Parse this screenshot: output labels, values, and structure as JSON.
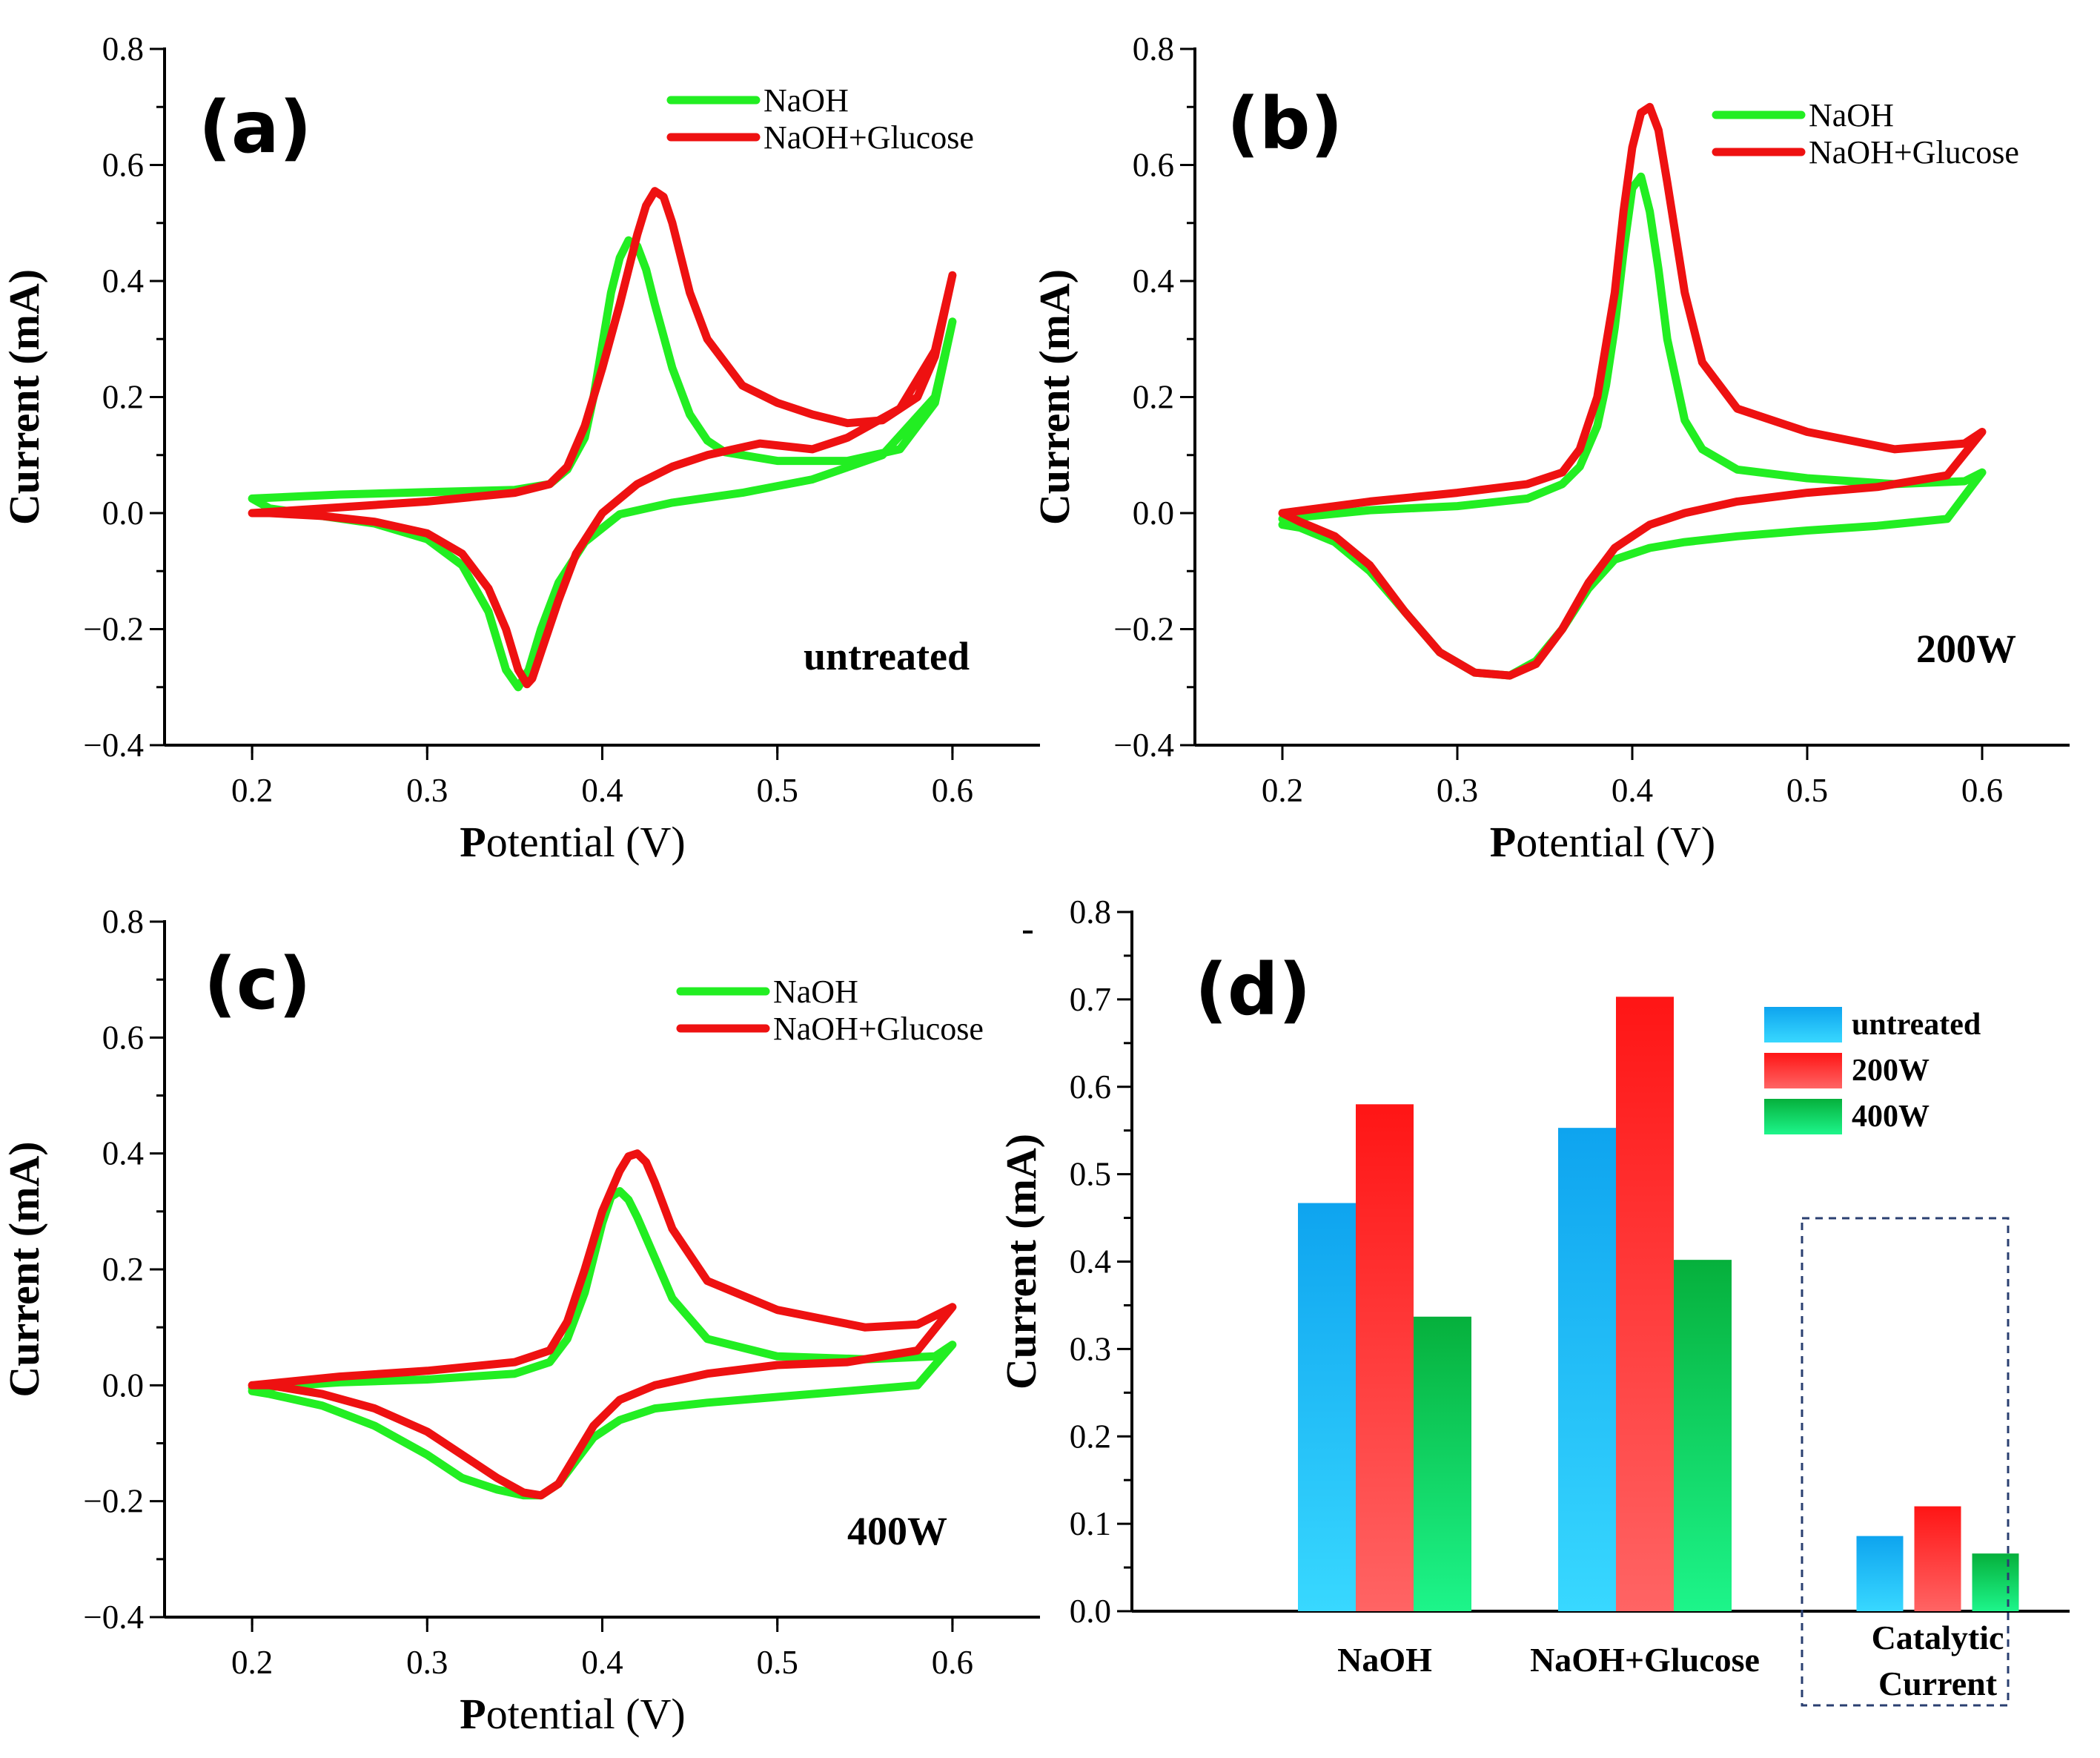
{
  "chart_data": [
    {
      "type": "line",
      "panel": "(a)",
      "annotation": "untreated",
      "xlabel": "Potential (V)",
      "ylabel": "Current (mA)",
      "xlim": [
        0.15,
        0.65
      ],
      "ylim": [
        -0.4,
        0.8
      ],
      "xticks": [
        0.2,
        0.3,
        0.4,
        0.5,
        0.6
      ],
      "xtick_labels": [
        "0.2",
        "0.3",
        "0.4",
        "0.5",
        "0.6"
      ],
      "yticks": [
        -0.4,
        -0.2,
        0.0,
        0.2,
        0.4,
        0.6,
        0.8
      ],
      "ytick_labels": [
        "−0.4",
        "−0.2",
        "0.0",
        "0.2",
        "0.4",
        "0.6",
        "0.8"
      ],
      "legend_position": "top-right",
      "series": [
        {
          "name": "NaOH",
          "color": "#22ee22",
          "x": [
            0.2,
            0.25,
            0.3,
            0.35,
            0.37,
            0.38,
            0.39,
            0.395,
            0.4,
            0.405,
            0.41,
            0.415,
            0.42,
            0.425,
            0.43,
            0.44,
            0.45,
            0.46,
            0.47,
            0.5,
            0.54,
            0.57,
            0.59,
            0.6,
            0.6,
            0.59,
            0.56,
            0.52,
            0.48,
            0.44,
            0.41,
            0.39,
            0.375,
            0.365,
            0.358,
            0.352,
            0.345,
            0.335,
            0.32,
            0.3,
            0.27,
            0.24,
            0.21,
            0.2
          ],
          "y": [
            0.025,
            0.032,
            0.036,
            0.04,
            0.05,
            0.075,
            0.13,
            0.2,
            0.29,
            0.38,
            0.44,
            0.47,
            0.46,
            0.42,
            0.36,
            0.25,
            0.17,
            0.125,
            0.105,
            0.09,
            0.09,
            0.11,
            0.19,
            0.33,
            0.33,
            0.2,
            0.1,
            0.058,
            0.035,
            0.018,
            -0.002,
            -0.05,
            -0.12,
            -0.2,
            -0.27,
            -0.3,
            -0.27,
            -0.17,
            -0.09,
            -0.045,
            -0.018,
            -0.005,
            0.008,
            0.025
          ]
        },
        {
          "name": "NaOH+Glucose",
          "color": "#ee1111",
          "x": [
            0.2,
            0.25,
            0.3,
            0.35,
            0.37,
            0.38,
            0.39,
            0.4,
            0.41,
            0.42,
            0.425,
            0.43,
            0.435,
            0.44,
            0.45,
            0.46,
            0.48,
            0.5,
            0.52,
            0.54,
            0.56,
            0.58,
            0.59,
            0.6,
            0.6,
            0.59,
            0.57,
            0.54,
            0.52,
            0.49,
            0.46,
            0.44,
            0.42,
            0.4,
            0.385,
            0.375,
            0.365,
            0.36,
            0.357,
            0.352,
            0.345,
            0.335,
            0.32,
            0.3,
            0.27,
            0.24,
            0.21,
            0.2
          ],
          "y": [
            0.0,
            0.01,
            0.02,
            0.035,
            0.05,
            0.08,
            0.15,
            0.25,
            0.36,
            0.48,
            0.53,
            0.555,
            0.545,
            0.5,
            0.38,
            0.3,
            0.22,
            0.19,
            0.17,
            0.155,
            0.16,
            0.2,
            0.27,
            0.41,
            0.41,
            0.28,
            0.18,
            0.13,
            0.11,
            0.12,
            0.1,
            0.08,
            0.05,
            0.0,
            -0.07,
            -0.15,
            -0.24,
            -0.285,
            -0.295,
            -0.27,
            -0.2,
            -0.13,
            -0.07,
            -0.035,
            -0.015,
            -0.005,
            0.0,
            0.0
          ]
        }
      ]
    },
    {
      "type": "line",
      "panel": "(b)",
      "annotation": "200W",
      "xlabel": "Potential (V)",
      "ylabel": "Current (mA)",
      "xlim": [
        0.15,
        0.65
      ],
      "ylim": [
        -0.4,
        0.8
      ],
      "xticks": [
        0.2,
        0.3,
        0.4,
        0.5,
        0.6
      ],
      "xtick_labels": [
        "0.2",
        "0.3",
        "0.4",
        "0.5",
        "0.6"
      ],
      "yticks": [
        -0.4,
        -0.2,
        0.0,
        0.2,
        0.4,
        0.6,
        0.8
      ],
      "ytick_labels": [
        "−0.4",
        "−0.2",
        "0.0",
        "0.2",
        "0.4",
        "0.6",
        "0.8"
      ],
      "legend_position": "top-right",
      "series": [
        {
          "name": "NaOH",
          "color": "#22ee22",
          "x": [
            0.2,
            0.25,
            0.3,
            0.34,
            0.36,
            0.37,
            0.38,
            0.385,
            0.39,
            0.395,
            0.4,
            0.405,
            0.41,
            0.415,
            0.42,
            0.43,
            0.44,
            0.46,
            0.5,
            0.55,
            0.59,
            0.6,
            0.6,
            0.58,
            0.54,
            0.5,
            0.46,
            0.43,
            0.41,
            0.39,
            0.375,
            0.36,
            0.345,
            0.33,
            0.31,
            0.29,
            0.27,
            0.25,
            0.23,
            0.21,
            0.2
          ],
          "y": [
            -0.01,
            0.005,
            0.012,
            0.025,
            0.05,
            0.08,
            0.15,
            0.22,
            0.32,
            0.45,
            0.56,
            0.58,
            0.52,
            0.42,
            0.3,
            0.16,
            0.11,
            0.075,
            0.06,
            0.05,
            0.055,
            0.07,
            0.07,
            -0.01,
            -0.022,
            -0.03,
            -0.04,
            -0.05,
            -0.06,
            -0.08,
            -0.13,
            -0.2,
            -0.255,
            -0.28,
            -0.275,
            -0.24,
            -0.17,
            -0.1,
            -0.05,
            -0.025,
            -0.02
          ]
        },
        {
          "name": "NaOH+Glucose",
          "color": "#ee1111",
          "x": [
            0.2,
            0.25,
            0.3,
            0.34,
            0.36,
            0.37,
            0.38,
            0.39,
            0.395,
            0.4,
            0.405,
            0.41,
            0.415,
            0.42,
            0.43,
            0.44,
            0.46,
            0.5,
            0.55,
            0.59,
            0.6,
            0.6,
            0.58,
            0.54,
            0.5,
            0.46,
            0.43,
            0.41,
            0.39,
            0.375,
            0.36,
            0.345,
            0.33,
            0.31,
            0.29,
            0.27,
            0.25,
            0.23,
            0.21,
            0.2
          ],
          "y": [
            0.0,
            0.02,
            0.035,
            0.05,
            0.07,
            0.11,
            0.2,
            0.38,
            0.52,
            0.63,
            0.69,
            0.7,
            0.66,
            0.57,
            0.38,
            0.26,
            0.18,
            0.14,
            0.11,
            0.12,
            0.14,
            0.14,
            0.065,
            0.045,
            0.035,
            0.02,
            0.0,
            -0.02,
            -0.06,
            -0.12,
            -0.2,
            -0.26,
            -0.28,
            -0.275,
            -0.24,
            -0.17,
            -0.09,
            -0.04,
            -0.015,
            0.0
          ]
        }
      ]
    },
    {
      "type": "line",
      "panel": "(c)",
      "annotation": "400W",
      "xlabel": "Potential (V)",
      "ylabel": "Current (mA)",
      "xlim": [
        0.15,
        0.65
      ],
      "ylim": [
        -0.4,
        0.8
      ],
      "xticks": [
        0.2,
        0.3,
        0.4,
        0.5,
        0.6
      ],
      "xtick_labels": [
        "0.2",
        "0.3",
        "0.4",
        "0.5",
        "0.6"
      ],
      "yticks": [
        -0.4,
        -0.2,
        0.0,
        0.2,
        0.4,
        0.6,
        0.8
      ],
      "ytick_labels": [
        "−0.4",
        "−0.2",
        "0.0",
        "0.2",
        "0.4",
        "0.6",
        "0.8"
      ],
      "legend_position": "top-right",
      "series": [
        {
          "name": "NaOH",
          "color": "#22ee22",
          "x": [
            0.2,
            0.25,
            0.3,
            0.35,
            0.37,
            0.38,
            0.39,
            0.4,
            0.405,
            0.41,
            0.415,
            0.42,
            0.43,
            0.44,
            0.46,
            0.5,
            0.55,
            0.59,
            0.6,
            0.6,
            0.58,
            0.54,
            0.5,
            0.46,
            0.43,
            0.41,
            0.395,
            0.385,
            0.375,
            0.365,
            0.355,
            0.34,
            0.32,
            0.3,
            0.27,
            0.24,
            0.21,
            0.2
          ],
          "y": [
            -0.005,
            0.005,
            0.01,
            0.02,
            0.04,
            0.08,
            0.16,
            0.28,
            0.325,
            0.335,
            0.32,
            0.29,
            0.22,
            0.15,
            0.08,
            0.05,
            0.045,
            0.05,
            0.07,
            0.07,
            0.0,
            -0.01,
            -0.02,
            -0.03,
            -0.04,
            -0.06,
            -0.09,
            -0.13,
            -0.17,
            -0.19,
            -0.19,
            -0.18,
            -0.16,
            -0.12,
            -0.07,
            -0.035,
            -0.015,
            -0.01
          ]
        },
        {
          "name": "NaOH+Glucose",
          "color": "#ee1111",
          "x": [
            0.2,
            0.25,
            0.3,
            0.35,
            0.37,
            0.38,
            0.39,
            0.4,
            0.41,
            0.415,
            0.42,
            0.425,
            0.43,
            0.44,
            0.46,
            0.5,
            0.55,
            0.58,
            0.6,
            0.6,
            0.58,
            0.54,
            0.5,
            0.46,
            0.43,
            0.41,
            0.395,
            0.385,
            0.375,
            0.365,
            0.355,
            0.34,
            0.32,
            0.3,
            0.27,
            0.24,
            0.21,
            0.2
          ],
          "y": [
            0.0,
            0.015,
            0.025,
            0.04,
            0.06,
            0.11,
            0.2,
            0.3,
            0.37,
            0.395,
            0.4,
            0.385,
            0.35,
            0.27,
            0.18,
            0.13,
            0.1,
            0.105,
            0.135,
            0.135,
            0.06,
            0.04,
            0.035,
            0.02,
            0.0,
            -0.025,
            -0.07,
            -0.12,
            -0.17,
            -0.19,
            -0.185,
            -0.16,
            -0.12,
            -0.08,
            -0.04,
            -0.015,
            0.0,
            0.0
          ]
        }
      ]
    },
    {
      "type": "bar",
      "panel": "(d)",
      "ylabel": "Current (mA)",
      "ylim": [
        0.0,
        0.8
      ],
      "yticks": [
        0.0,
        0.1,
        0.2,
        0.3,
        0.4,
        0.5,
        0.6,
        0.7,
        0.8
      ],
      "ytick_labels": [
        "0.0",
        "0.1",
        "0.2",
        "0.3",
        "0.4",
        "0.5",
        "0.6",
        "0.7",
        "0.8"
      ],
      "categories": [
        "NaOH",
        "NaOH+Glucose",
        "Catalytic Current"
      ],
      "category_lines": [
        [
          "NaOH"
        ],
        [
          "NaOH+Glucose"
        ],
        [
          "Catalytic",
          "Current"
        ]
      ],
      "highlighted_category": "Catalytic Current",
      "legend_position": "top-right",
      "series": [
        {
          "name": "untreated",
          "color": "#1fb4f5",
          "values": [
            0.467,
            0.553,
            0.086
          ]
        },
        {
          "name": "200W",
          "color": "#ff2020",
          "values": [
            0.58,
            0.703,
            0.12
          ]
        },
        {
          "name": "400W",
          "color": "#0fc24a",
          "values": [
            0.337,
            0.402,
            0.066
          ]
        }
      ]
    }
  ]
}
